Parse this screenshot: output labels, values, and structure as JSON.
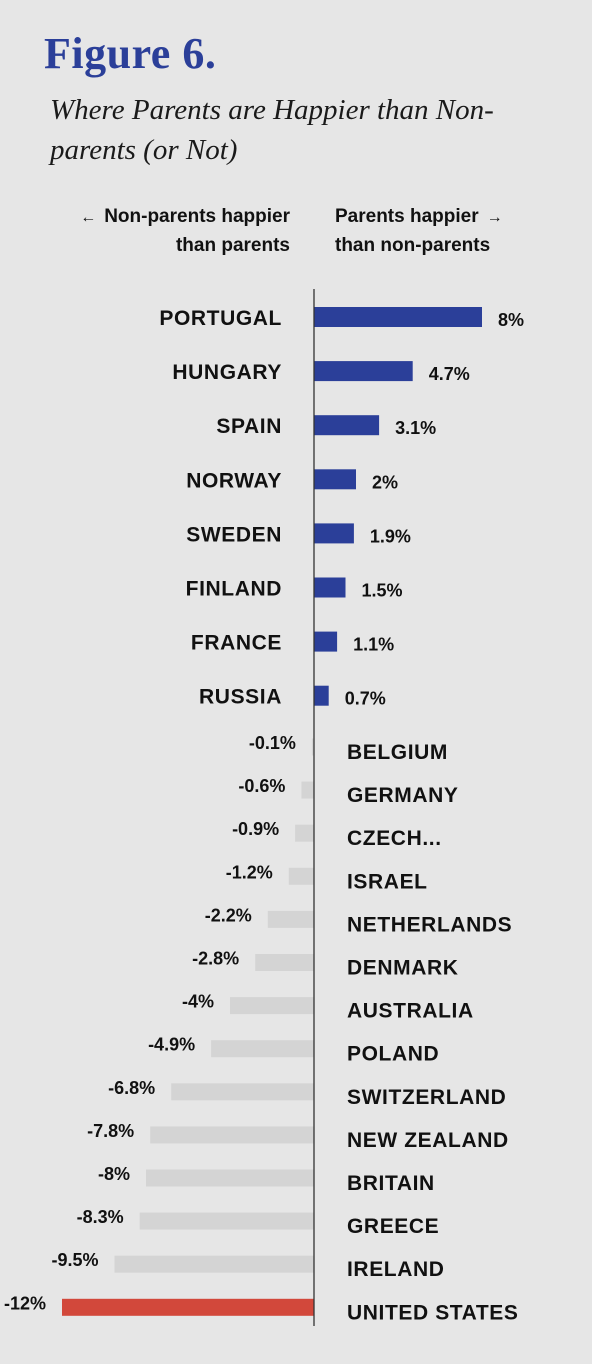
{
  "figure_label": "Figure 6.",
  "chart_data": {
    "type": "bar",
    "orientation": "horizontal",
    "title": "Figure 6.",
    "subtitle": "Where Parents are Happier than Non-parents (or Not)",
    "legend": {
      "left_line1": "Non-parents happier",
      "left_line2": "than parents",
      "right_line1": "Parents happier",
      "right_line2": "than non-parents",
      "left_arrow": "←",
      "right_arrow": "→"
    },
    "categories": [
      "PORTUGAL",
      "HUNGARY",
      "SPAIN",
      "NORWAY",
      "SWEDEN",
      "FINLAND",
      "FRANCE",
      "RUSSIA",
      "BELGIUM",
      "GERMANY",
      "CZECH...",
      "ISRAEL",
      "NETHERLANDS",
      "DENMARK",
      "AUSTRALIA",
      "POLAND",
      "SWITZERLAND",
      "NEW ZEALAND",
      "BRITAIN",
      "GREECE",
      "IRELAND",
      "UNITED STATES"
    ],
    "values": [
      8,
      4.7,
      3.1,
      2,
      1.9,
      1.5,
      1.1,
      0.7,
      -0.1,
      -0.6,
      -0.9,
      -1.2,
      -2.2,
      -2.8,
      -4,
      -4.9,
      -6.8,
      -7.8,
      -8,
      -8.3,
      -9.5,
      -12
    ],
    "value_labels": [
      "8%",
      "4.7%",
      "3.1%",
      "2%",
      "1.9%",
      "1.5%",
      "1.1%",
      "0.7%",
      "-0.1%",
      "-0.6%",
      "-0.9%",
      "-1.2%",
      "-2.2%",
      "-2.8%",
      "-4%",
      "-4.9%",
      "-6.8%",
      "-7.8%",
      "-8%",
      "-8.3%",
      "-9.5%",
      "-12%"
    ],
    "colors": {
      "positive": "#2b3f99",
      "negative": "#d4d4d4",
      "highlight": "#d2483b",
      "axis": "#333333",
      "title": "#2b3f99"
    },
    "highlight_category": "UNITED STATES",
    "grid": false
  }
}
